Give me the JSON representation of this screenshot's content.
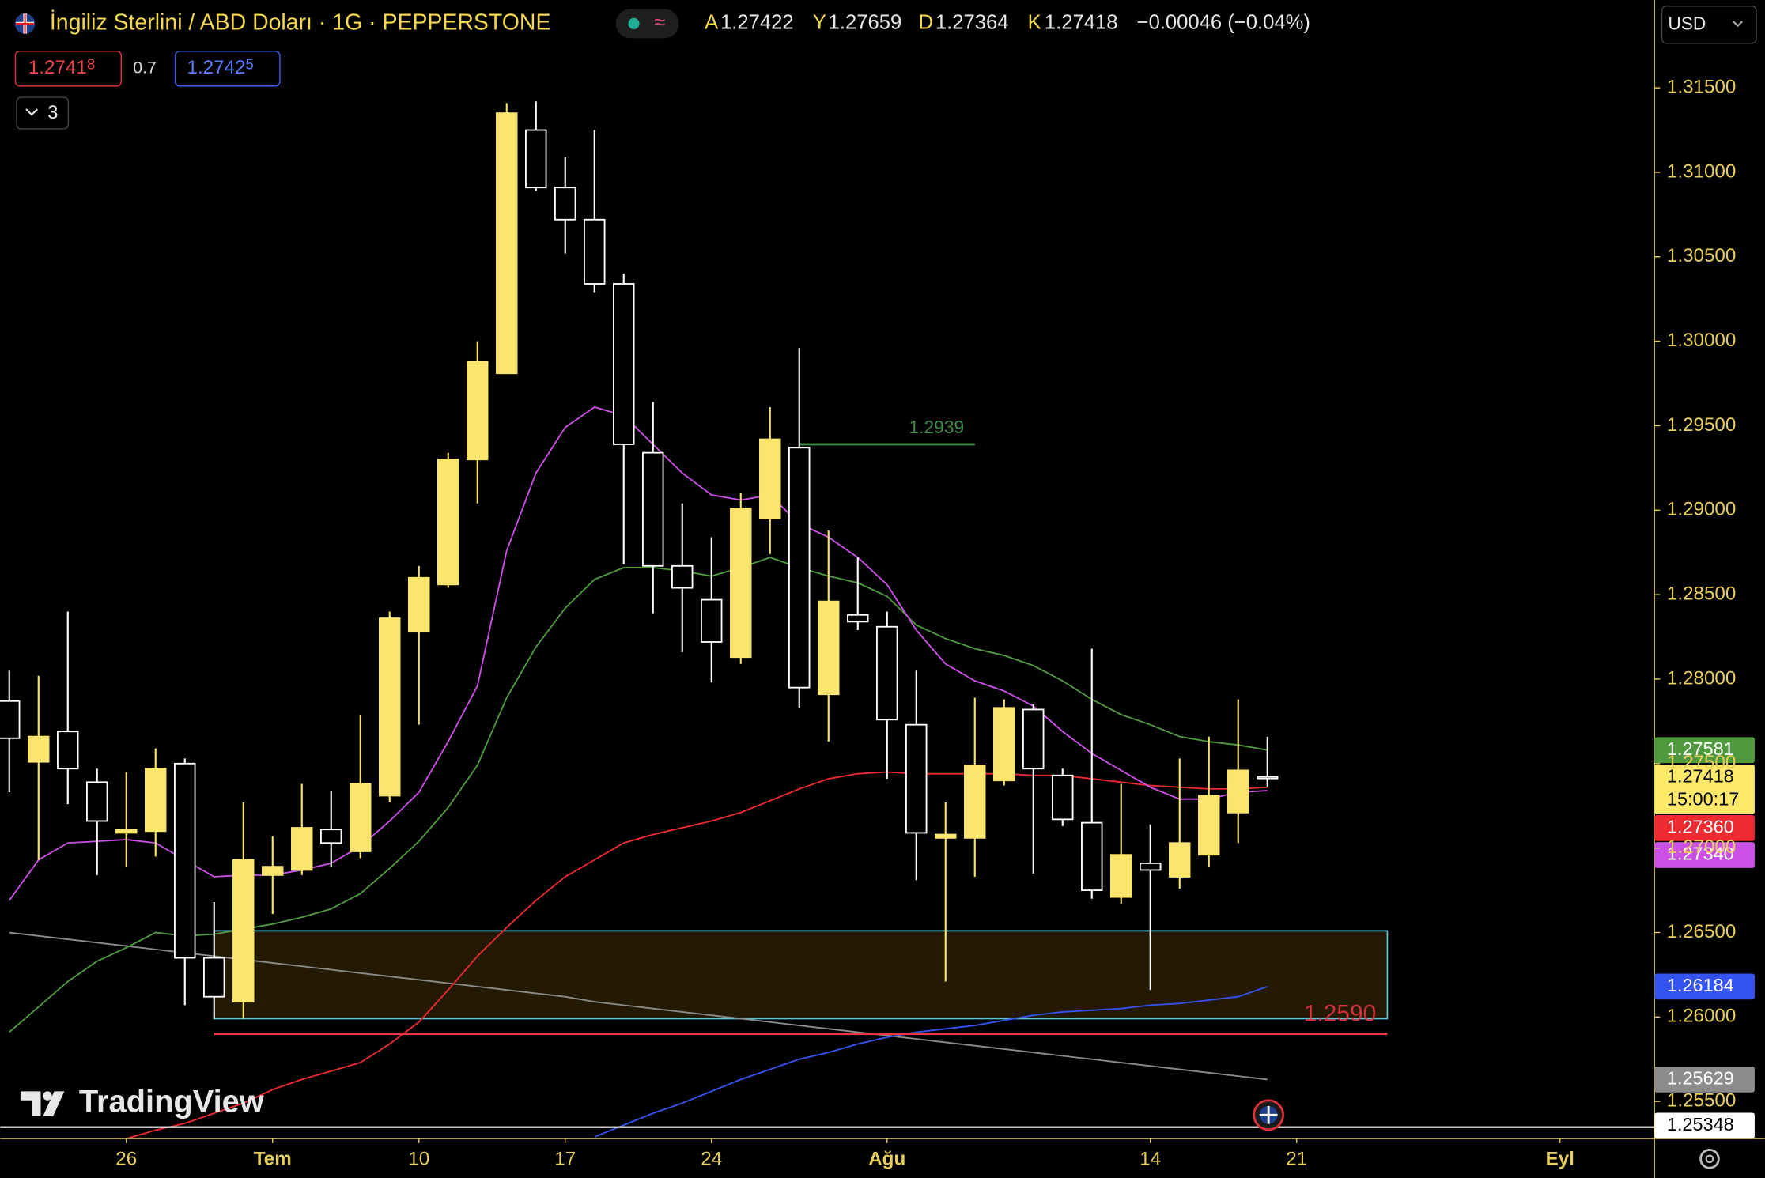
{
  "header": {
    "symbol": "İngiliz Sterlini / ABD Doları · 1G · PEPPERSTONE",
    "ohlc_labels": [
      "A",
      "Y",
      "D",
      "K"
    ],
    "change": "−0.00046 (−0.04%)",
    "currency": "USD"
  },
  "trade": {
    "sell_main": "1.2741",
    "sell_small": "8",
    "spread": "0.7",
    "buy_main": "1.2742",
    "buy_small": "5"
  },
  "indicators_toggle": {
    "count": 3
  },
  "watermark": "TradingView",
  "countdown": "15:00:17",
  "chart_data": {
    "type": "candlestick",
    "up_color": "#fbe56c",
    "down_color": "#ffffff",
    "open": [
      1.2787,
      1.2751,
      1.2769,
      1.2739,
      1.2709,
      1.271,
      1.275,
      1.2635,
      1.2609,
      1.2684,
      1.2687,
      1.2711,
      1.2698,
      1.2731,
      1.2828,
      1.2856,
      1.293,
      1.2981,
      1.3125,
      1.3091,
      1.3072,
      1.3034,
      1.2934,
      1.2867,
      1.2847,
      1.2813,
      1.2895,
      1.2937,
      1.2791,
      1.2838,
      1.2831,
      1.2773,
      1.2706,
      1.2706,
      1.274,
      1.2782,
      1.2743,
      1.2715,
      1.2671,
      1.2691,
      1.2683,
      1.2696,
      1.2721,
      1.27422
    ],
    "high": [
      1.2805,
      1.2802,
      1.284,
      1.2747,
      1.2745,
      1.2759,
      1.2753,
      1.2668,
      1.2727,
      1.2707,
      1.2738,
      1.2734,
      1.2779,
      1.284,
      1.2867,
      1.2934,
      1.3,
      1.3141,
      1.3142,
      1.3109,
      1.3125,
      1.304,
      1.2964,
      1.2904,
      1.2884,
      1.291,
      1.2961,
      1.2996,
      1.2888,
      1.2872,
      1.284,
      1.2805,
      1.2727,
      1.2789,
      1.2788,
      1.2785,
      1.2747,
      1.2818,
      1.2738,
      1.2714,
      1.2753,
      1.2766,
      1.2788,
      1.27659
    ],
    "low": [
      1.2733,
      1.2693,
      1.2726,
      1.2684,
      1.2689,
      1.2695,
      1.2607,
      1.2599,
      1.2599,
      1.2661,
      1.2684,
      1.2689,
      1.2694,
      1.2727,
      1.2773,
      1.2854,
      1.2904,
      1.2981,
      1.3089,
      1.3052,
      1.3029,
      1.2868,
      1.2839,
      1.2816,
      1.2798,
      1.2809,
      1.2874,
      1.2783,
      1.2763,
      1.2829,
      1.2741,
      1.2681,
      1.2621,
      1.2683,
      1.2737,
      1.2685,
      1.2713,
      1.267,
      1.2667,
      1.2616,
      1.2676,
      1.2689,
      1.2703,
      1.27364
    ],
    "close": [
      1.2765,
      1.2766,
      1.2747,
      1.2716,
      1.2711,
      1.2747,
      1.2635,
      1.2612,
      1.2693,
      1.2689,
      1.2712,
      1.2703,
      1.2738,
      1.2836,
      1.286,
      1.293,
      1.2988,
      1.3135,
      1.3091,
      1.3072,
      1.3034,
      1.2939,
      1.2867,
      1.2854,
      1.2822,
      1.2901,
      1.2942,
      1.2795,
      1.2846,
      1.2834,
      1.2776,
      1.2709,
      1.2708,
      1.2749,
      1.2783,
      1.2747,
      1.2717,
      1.2675,
      1.2696,
      1.2687,
      1.2703,
      1.2731,
      1.2746,
      1.27418
    ],
    "series": [
      {
        "color": "#8c8c8c",
        "value_label": "1.25629",
        "values": [
          1.265,
          1.2648,
          1.2646,
          1.2644,
          1.2642,
          1.264,
          1.2638,
          1.2636,
          1.2634,
          1.2632,
          1.263,
          1.2628,
          1.2626,
          1.2624,
          1.2622,
          1.262,
          1.2618,
          1.2616,
          1.2614,
          1.2612,
          1.2609,
          1.2607,
          1.2605,
          1.2603,
          1.2601,
          1.2599,
          1.2597,
          1.2595,
          1.2593,
          1.2591,
          1.2589,
          1.2587,
          1.2585,
          1.2583,
          1.2581,
          1.2579,
          1.2577,
          1.2575,
          1.2573,
          1.2571,
          1.2569,
          1.2567,
          1.2565,
          1.2563
        ]
      },
      {
        "color": "#3553ee",
        "value_label": "1.26184",
        "values": [
          null,
          null,
          null,
          null,
          null,
          null,
          null,
          null,
          null,
          null,
          null,
          null,
          null,
          null,
          null,
          null,
          null,
          null,
          null,
          null,
          1.2529,
          1.2536,
          1.2543,
          1.2549,
          1.2556,
          1.2563,
          1.2569,
          1.2575,
          1.2579,
          1.2584,
          1.2588,
          1.2591,
          1.2593,
          1.2595,
          1.2598,
          1.2601,
          1.2603,
          1.2604,
          1.2605,
          1.2607,
          1.2608,
          1.261,
          1.2612,
          1.2618
        ]
      },
      {
        "color": "#ec2a2f",
        "value_label": "1.27360",
        "values": [
          null,
          null,
          null,
          null,
          1.2528,
          1.2533,
          1.2537,
          1.2543,
          1.2549,
          1.2557,
          1.2563,
          1.2568,
          1.2573,
          1.2584,
          1.2597,
          1.2616,
          1.2636,
          1.2653,
          1.2669,
          1.2683,
          1.2693,
          1.2703,
          1.2708,
          1.2712,
          1.2716,
          1.2721,
          1.2728,
          1.2735,
          1.2741,
          1.2744,
          1.2745,
          1.2744,
          1.2744,
          1.2744,
          1.2744,
          1.2743,
          1.2743,
          1.2741,
          1.2739,
          1.2737,
          1.2736,
          1.2735,
          1.2735,
          1.2736
        ]
      },
      {
        "color": "#4f9a3f",
        "value_label": "1.27581",
        "values": [
          1.2591,
          1.2606,
          1.2621,
          1.2633,
          1.2641,
          1.265,
          1.2648,
          1.2649,
          1.2652,
          1.2655,
          1.2659,
          1.2664,
          1.2673,
          1.2688,
          1.2704,
          1.2724,
          1.2749,
          1.2789,
          1.2819,
          1.2842,
          1.2859,
          1.2866,
          1.2866,
          1.2864,
          1.2861,
          1.2866,
          1.2872,
          1.2866,
          1.2861,
          1.2857,
          1.2849,
          1.2832,
          1.2824,
          1.2818,
          1.2814,
          1.2808,
          1.2799,
          1.2788,
          1.2779,
          1.2773,
          1.2766,
          1.2763,
          1.2761,
          1.2758
        ]
      },
      {
        "color": "#cc4fe6",
        "value_label": "1.27340",
        "values": [
          1.2669,
          1.2693,
          1.2703,
          1.2704,
          1.2705,
          1.2703,
          1.2693,
          1.2683,
          1.2684,
          1.2684,
          1.2687,
          1.2691,
          1.2701,
          1.2716,
          1.2733,
          1.2763,
          1.2796,
          1.2876,
          1.2922,
          1.2949,
          1.2961,
          1.2956,
          1.2939,
          1.2922,
          1.2909,
          1.2906,
          1.2909,
          1.2892,
          1.2884,
          1.2872,
          1.2856,
          1.2829,
          1.2809,
          1.2799,
          1.2793,
          1.2784,
          1.2769,
          1.2756,
          1.2746,
          1.2736,
          1.2729,
          1.2729,
          1.2733,
          1.2734
        ]
      }
    ],
    "zone": {
      "low": 1.2599,
      "high": 1.2651,
      "from": 7,
      "to": 47.1
    },
    "levels": [
      {
        "price": 1.2939,
        "from": 27,
        "to": 33,
        "color": "#3f8a48"
      },
      {
        "price": {
          "value": 1.259,
          "label": "1.2590"
        },
        "from": 7,
        "to": 47.1,
        "color": "#f23645"
      },
      {
        "price": 1.25348,
        "from": -0.31,
        "to": 56.23,
        "color": "#ffffff"
      }
    ],
    "xlim": [
      -0.31,
      56.23
    ],
    "ylim": [
      1.2528,
      1.3202
    ],
    "xticks": [
      {
        "value": 4,
        "label": "26"
      },
      {
        "value": 9,
        "label": "Tem"
      },
      {
        "value": 14,
        "label": "10"
      },
      {
        "value": 19,
        "label": "17"
      },
      {
        "value": 24,
        "label": "24"
      },
      {
        "value": 30,
        "label": "Ağu"
      },
      {
        "value": 39,
        "label": "14"
      },
      {
        "value": 44,
        "label": "21"
      },
      {
        "value": 53,
        "label": "Eyl"
      }
    ],
    "yticks": [
      {
        "value": 1.315,
        "label": "1.31500"
      },
      {
        "value": 1.31,
        "label": "1.31000"
      },
      {
        "value": 1.305,
        "label": "1.30500"
      },
      {
        "value": 1.3,
        "label": "1.30000"
      },
      {
        "value": 1.295,
        "label": "1.29500"
      },
      {
        "value": 1.29,
        "label": "1.29000"
      },
      {
        "value": 1.285,
        "label": "1.28500"
      },
      {
        "value": 1.28,
        "label": "1.28000"
      },
      {
        "value": 1.275,
        "label": "1.27500"
      },
      {
        "value": 1.27,
        "label": "1.27000"
      },
      {
        "value": 1.265,
        "label": "1.26500"
      },
      {
        "value": 1.26,
        "label": "1.26000"
      },
      {
        "value": 1.255,
        "label": "1.25500"
      }
    ],
    "grid": false
  }
}
